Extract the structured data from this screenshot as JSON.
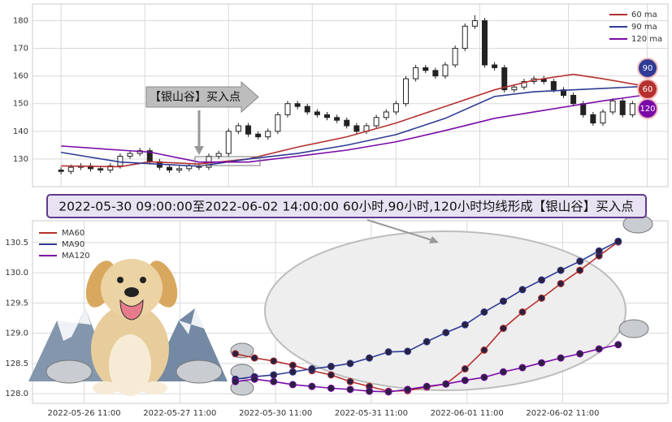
{
  "banner": "2022-05-30 09:00:00至2022-06-02 14:00:00 60小时,90小时,120小时均线形成【银山谷】买入点",
  "chart_data": [
    {
      "type": "candlestick",
      "annotation": "【银山谷】买入点",
      "xlim": [
        -2.9,
        61.6
      ],
      "xticks": [
        0,
        8.5,
        17,
        25.5,
        34,
        42.5,
        51.5,
        59.5
      ],
      "ylim": [
        120,
        186
      ],
      "yticks": [
        130,
        140,
        150,
        160,
        170,
        180
      ],
      "grid": true,
      "legend": "upper right",
      "open": [
        126,
        125.5,
        127,
        127.5,
        126.5,
        126,
        127.5,
        131,
        132,
        133,
        129,
        127,
        126,
        126.5,
        127.5,
        127,
        131,
        132,
        140,
        142,
        139,
        138,
        140,
        146,
        150,
        149,
        147,
        146,
        145,
        144,
        142,
        140,
        142,
        145,
        147,
        150,
        159,
        163,
        162,
        160,
        164,
        170,
        178,
        180,
        164,
        163,
        155,
        156,
        158,
        159,
        158,
        155,
        153,
        150,
        146,
        143,
        147,
        151,
        146,
        150
      ],
      "high": [
        127,
        128,
        128.5,
        128.5,
        127.5,
        128.5,
        132,
        133,
        134,
        134,
        130,
        128,
        127.5,
        128.5,
        128.5,
        132,
        133,
        141,
        143,
        143,
        140,
        141,
        147,
        151,
        151,
        150,
        148,
        147,
        146,
        145,
        143,
        143,
        146,
        148,
        151,
        160,
        164,
        164,
        163,
        165,
        171,
        179,
        182,
        181,
        165,
        164,
        157,
        159,
        160,
        160,
        159,
        156,
        154,
        151,
        147,
        148,
        152,
        152,
        151,
        151
      ],
      "low": [
        124.5,
        124.5,
        126,
        125.5,
        125,
        125,
        126.5,
        130,
        131,
        128,
        126,
        125,
        125,
        125.5,
        126,
        126,
        130,
        131,
        139,
        138,
        137,
        137,
        139,
        145,
        148,
        146,
        145,
        144,
        143,
        141,
        139,
        139,
        141,
        144,
        146,
        149,
        158,
        161,
        159,
        159,
        163,
        169,
        177,
        163,
        162,
        154,
        154,
        155,
        157,
        157,
        154,
        152,
        149,
        145,
        142,
        142,
        146,
        145,
        145,
        149
      ],
      "close": [
        125.5,
        127,
        127.5,
        126.5,
        126,
        127.5,
        131,
        132,
        133,
        129,
        127,
        126,
        126.5,
        127.5,
        127,
        131,
        132,
        140,
        142,
        139,
        138,
        140,
        146,
        150,
        149,
        147,
        146,
        145,
        144,
        142,
        140,
        142,
        145,
        147,
        150,
        159,
        163,
        162,
        160,
        164,
        170,
        178,
        180,
        164,
        163,
        155,
        156,
        158,
        159,
        158,
        155,
        153,
        150,
        146,
        143,
        147,
        151,
        146,
        150,
        150
      ],
      "series": [
        {
          "name": "60 ma",
          "badge": "60",
          "color": "#b5312f",
          "x": [
            0,
            6,
            9,
            14,
            19,
            24,
            29,
            34,
            39,
            44,
            48,
            52,
            55,
            59
          ],
          "values": [
            127.5,
            127.2,
            129,
            128.2,
            130,
            134.3,
            138,
            143,
            149,
            155,
            158.5,
            160.6,
            159,
            156.5
          ]
        },
        {
          "name": "90 ma",
          "badge": "90",
          "color": "#2f3b95",
          "x": [
            0,
            6,
            9,
            14,
            19,
            24,
            29,
            34,
            39,
            44,
            48,
            52,
            55,
            59
          ],
          "values": [
            132.4,
            128.9,
            128.3,
            127.4,
            130,
            132,
            135,
            138.8,
            144.7,
            152.6,
            154.3,
            155,
            155.5,
            156.2
          ]
        },
        {
          "name": "120 ma",
          "badge": "120",
          "color": "#7a0aa8",
          "x": [
            0,
            6,
            9,
            14,
            19,
            24,
            29,
            34,
            39,
            44,
            48,
            52,
            55,
            59
          ],
          "values": [
            134.7,
            133.2,
            132.5,
            128.9,
            128.9,
            131,
            133.2,
            136.2,
            140.3,
            144.7,
            147,
            149.3,
            151,
            153
          ]
        }
      ]
    },
    {
      "type": "line",
      "xlim": [
        -10.6,
        22.6
      ],
      "xticks": [
        {
          "value": -7.9,
          "label": "2022-05-26 11:00"
        },
        {
          "value": -2.9,
          "label": "2022-05-27 11:00"
        },
        {
          "value": 2.1,
          "label": "2022-05-30 11:00"
        },
        {
          "value": 7.1,
          "label": "2022-05-31 11:00"
        },
        {
          "value": 12.1,
          "label": "2022-06-01 11:00"
        },
        {
          "value": 17.1,
          "label": "2022-06-02 11:00"
        }
      ],
      "ylim": [
        127.84,
        130.86
      ],
      "yticks": [
        {
          "value": 128,
          "label": "128.0"
        },
        128.5,
        {
          "value": 129,
          "label": "129.0"
        },
        129.5,
        {
          "value": 130,
          "label": "130.0"
        },
        130.5
      ],
      "grid": true,
      "legend": "upper left",
      "markers": true,
      "x": [
        0,
        1,
        2,
        3,
        4,
        5,
        6,
        7,
        8,
        9,
        10,
        11,
        12,
        13,
        14,
        15,
        16,
        17,
        18,
        19,
        20
      ],
      "series": [
        {
          "name": "MA60",
          "color": "#b5312f",
          "values": [
            128.66,
            128.59,
            128.54,
            128.47,
            128.38,
            128.31,
            128.2,
            128.12,
            128.04,
            128.05,
            128.11,
            128.16,
            128.41,
            128.72,
            129.08,
            129.35,
            129.58,
            129.82,
            130.04,
            130.28,
            130.51
          ]
        },
        {
          "name": "MA90",
          "color": "#2f3b95",
          "values": [
            128.24,
            128.28,
            128.31,
            128.36,
            128.41,
            128.45,
            128.5,
            128.59,
            128.69,
            128.7,
            128.86,
            129.01,
            129.14,
            129.35,
            129.53,
            129.72,
            129.88,
            130.04,
            130.19,
            130.36,
            130.52
          ]
        },
        {
          "name": "MA120",
          "color": "#7a0aa8",
          "values": [
            128.2,
            128.24,
            128.2,
            128.15,
            128.12,
            128.09,
            128.07,
            128.04,
            128.03,
            128.07,
            128.12,
            128.16,
            128.22,
            128.27,
            128.36,
            128.43,
            128.51,
            128.59,
            128.66,
            128.74,
            128.81
          ]
        }
      ]
    }
  ]
}
